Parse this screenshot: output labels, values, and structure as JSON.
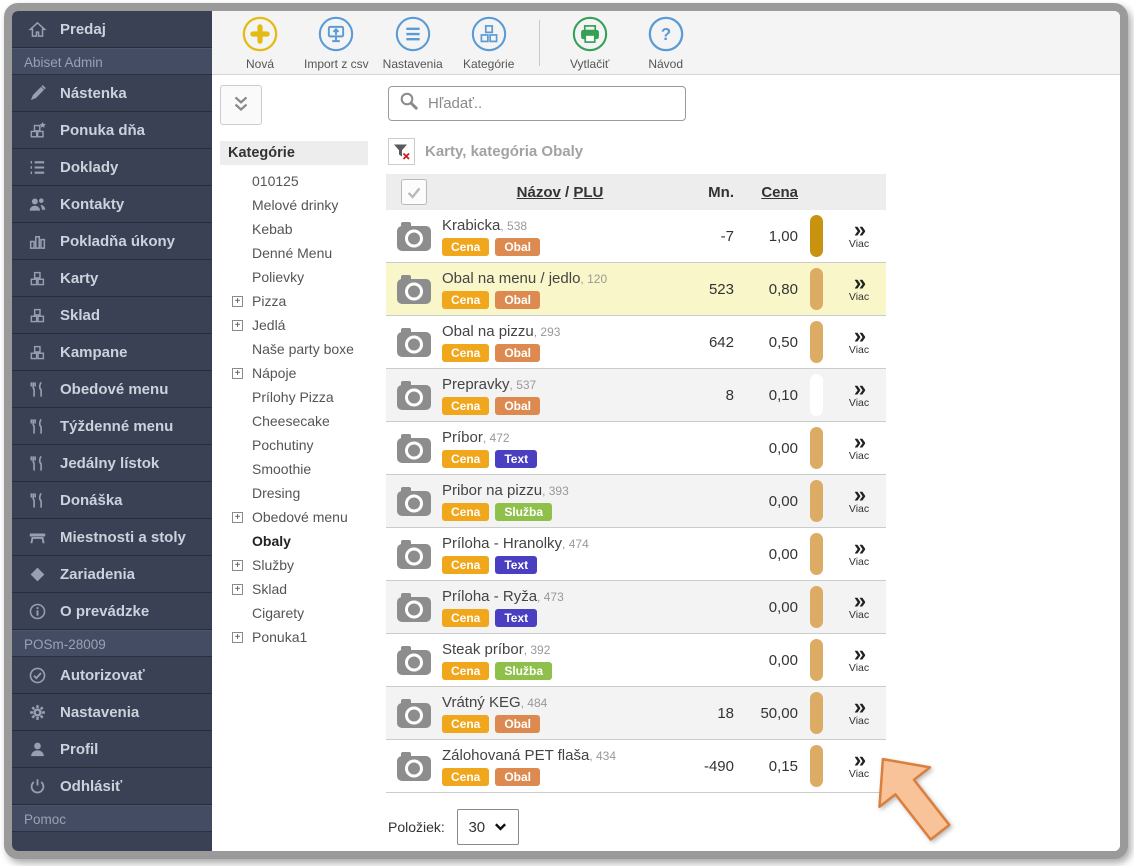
{
  "sidebar": {
    "items": [
      {
        "type": "item",
        "label": "Predaj",
        "icon": "home"
      },
      {
        "type": "section",
        "label": "Abiset Admin"
      },
      {
        "type": "item",
        "label": "Nástenka",
        "icon": "brush"
      },
      {
        "type": "item",
        "label": "Ponuka dňa",
        "icon": "box-star"
      },
      {
        "type": "item",
        "label": "Doklady",
        "icon": "list"
      },
      {
        "type": "item",
        "label": "Kontakty",
        "icon": "people"
      },
      {
        "type": "item",
        "label": "Pokladňa úkony",
        "icon": "bars"
      },
      {
        "type": "item",
        "label": "Karty",
        "icon": "cubes"
      },
      {
        "type": "item",
        "label": "Sklad",
        "icon": "cubes"
      },
      {
        "type": "item",
        "label": "Kampane",
        "icon": "cubes"
      },
      {
        "type": "item",
        "label": "Obedové menu",
        "icon": "cutlery"
      },
      {
        "type": "item",
        "label": "Týždenné menu",
        "icon": "cutlery"
      },
      {
        "type": "item",
        "label": "Jedálny lístok",
        "icon": "cutlery"
      },
      {
        "type": "item",
        "label": "Donáška",
        "icon": "cutlery"
      },
      {
        "type": "item",
        "label": "Miestnosti a stoly",
        "icon": "table"
      },
      {
        "type": "item",
        "label": "Zariadenia",
        "icon": "diamond"
      },
      {
        "type": "item",
        "label": "O prevádzke",
        "icon": "info"
      },
      {
        "type": "section",
        "label": "POSm-28009"
      },
      {
        "type": "item",
        "label": "Autorizovať",
        "icon": "check-circle"
      },
      {
        "type": "item",
        "label": "Nastavenia",
        "icon": "gear"
      },
      {
        "type": "item",
        "label": "Profil",
        "icon": "person"
      },
      {
        "type": "item",
        "label": "Odhlásiť",
        "icon": "power"
      },
      {
        "type": "section",
        "label": "Pomoc"
      }
    ]
  },
  "toolbar": {
    "buttons": [
      {
        "label": "Nová",
        "icon": "plus",
        "color": "#e3bb14"
      },
      {
        "label": "Import z csv",
        "icon": "import",
        "color": "#5b9bd5"
      },
      {
        "label": "Nastavenia",
        "icon": "menu-lines",
        "color": "#5b9bd5"
      },
      {
        "label": "Kategórie",
        "icon": "cubes-o",
        "color": "#5b9bd5"
      },
      {
        "divider": true
      },
      {
        "label": "Vytlačiť",
        "icon": "printer",
        "color": "#35a155"
      },
      {
        "label": "Návod",
        "icon": "help",
        "color": "#5b9bd5"
      }
    ]
  },
  "categories": {
    "header": "Kategórie",
    "items": [
      {
        "label": "010125"
      },
      {
        "label": "Melové drinky"
      },
      {
        "label": "Kebab"
      },
      {
        "label": "Denné Menu"
      },
      {
        "label": "Polievky"
      },
      {
        "label": "Pizza",
        "expandable": true
      },
      {
        "label": "Jedlá",
        "expandable": true
      },
      {
        "label": "Naše party boxe"
      },
      {
        "label": "Nápoje",
        "expandable": true
      },
      {
        "label": "Prílohy Pizza"
      },
      {
        "label": "Cheesecake"
      },
      {
        "label": "Pochutiny"
      },
      {
        "label": "Smoothie"
      },
      {
        "label": "Dresing"
      },
      {
        "label": "Obedové menu",
        "expandable": true
      },
      {
        "label": "Obaly",
        "selected": true
      },
      {
        "label": "Služby",
        "expandable": true
      },
      {
        "label": "Sklad",
        "expandable": true
      },
      {
        "label": "Cigarety"
      },
      {
        "label": "Ponuka1",
        "expandable": true
      }
    ]
  },
  "search": {
    "placeholder": "Hľadať.."
  },
  "filter": {
    "label": "Karty, kategória Obaly"
  },
  "table": {
    "headers": {
      "name": "Názov",
      "separator": " / ",
      "plu": "PLU",
      "qty": "Mn.",
      "price": "Cena"
    },
    "more_label": "Viac",
    "badge_colors": {
      "Cena": "#f0a71c",
      "Obal": "#dc8a50",
      "Text": "#4a3fc1",
      "Služba": "#8fc04c"
    },
    "row_highlight_color": "#f9f7c9",
    "rows": [
      {
        "name": "Krabicka",
        "plu": "538",
        "badges": [
          "Cena",
          "Obal"
        ],
        "qty": "-7",
        "price": "1,00",
        "pill": "#c8930f"
      },
      {
        "name": "Obal na menu / jedlo",
        "plu": "120",
        "badges": [
          "Cena",
          "Obal"
        ],
        "qty": "523",
        "price": "0,80",
        "pill": "#dcab64",
        "highlighted": true
      },
      {
        "name": "Obal na pizzu",
        "plu": "293",
        "badges": [
          "Cena",
          "Obal"
        ],
        "qty": "642",
        "price": "0,50",
        "pill": "#dcab64"
      },
      {
        "name": "Prepravky",
        "plu": "537",
        "badges": [
          "Cena",
          "Obal"
        ],
        "qty": "8",
        "price": "0,10",
        "pill": "#ffffff"
      },
      {
        "name": "Príbor",
        "plu": "472",
        "badges": [
          "Cena",
          "Text"
        ],
        "qty": "",
        "price": "0,00",
        "pill": "#dcab64"
      },
      {
        "name": "Pribor na pizzu",
        "plu": "393",
        "badges": [
          "Cena",
          "Služba"
        ],
        "qty": "",
        "price": "0,00",
        "pill": "#dcab64"
      },
      {
        "name": "Príloha - Hranolky",
        "plu": "474",
        "badges": [
          "Cena",
          "Text"
        ],
        "qty": "",
        "price": "0,00",
        "pill": "#dcab64"
      },
      {
        "name": "Príloha - Ryža",
        "plu": "473",
        "badges": [
          "Cena",
          "Text"
        ],
        "qty": "",
        "price": "0,00",
        "pill": "#dcab64"
      },
      {
        "name": "Steak príbor",
        "plu": "392",
        "badges": [
          "Cena",
          "Služba"
        ],
        "qty": "",
        "price": "0,00",
        "pill": "#dcab64"
      },
      {
        "name": "Vrátný KEG",
        "plu": "484",
        "badges": [
          "Cena",
          "Obal"
        ],
        "qty": "18",
        "price": "50,00",
        "pill": "#dcab64"
      },
      {
        "name": "Zálohovaná PET flaša",
        "plu": "434",
        "badges": [
          "Cena",
          "Obal"
        ],
        "qty": "-490",
        "price": "0,15",
        "pill": "#dcab64"
      }
    ]
  },
  "footer": {
    "items_label": "Položiek:",
    "page_size": "30"
  }
}
